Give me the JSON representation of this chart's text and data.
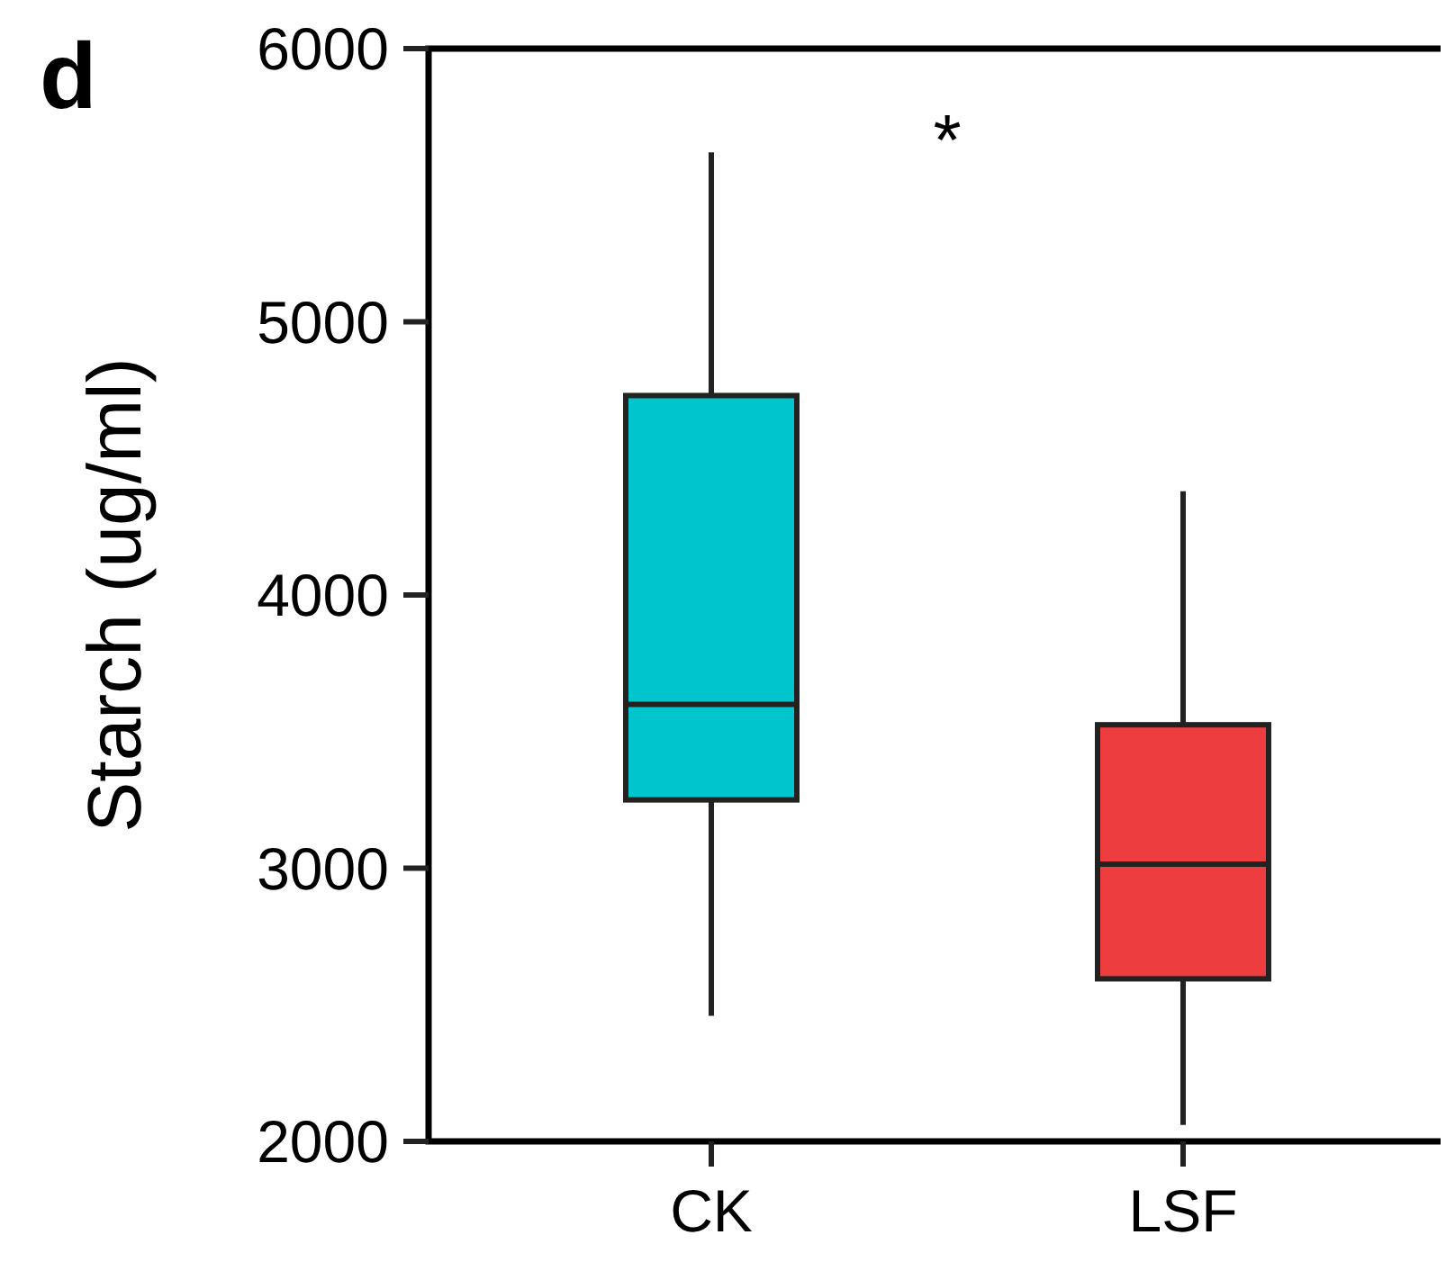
{
  "chart_data": {
    "type": "box",
    "ylabel": "Starch (ug/ml)",
    "categories": [
      "CK",
      "LSF"
    ],
    "colors": [
      "#00c5cc",
      "#ee3d3f"
    ],
    "boxes": [
      {
        "low": 2460,
        "q1": 3250,
        "median": 3600,
        "q3": 4730,
        "high": 5620
      },
      {
        "low": 2060,
        "q1": 2595,
        "median": 3015,
        "q3": 3525,
        "high": 4380
      }
    ],
    "ylim": [
      2000,
      6000
    ],
    "yticks": [
      2000,
      3000,
      4000,
      5000,
      6000
    ],
    "grid": false,
    "annotations": [
      "d",
      "*"
    ]
  }
}
